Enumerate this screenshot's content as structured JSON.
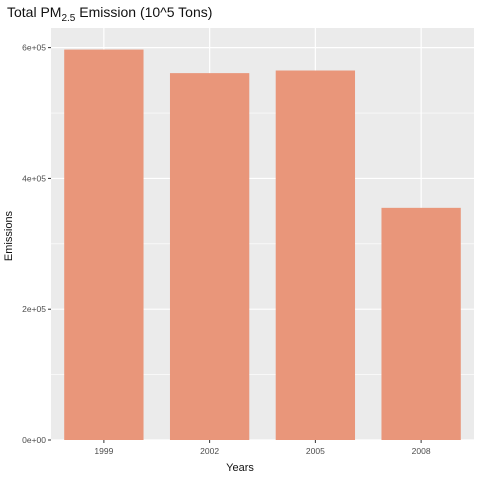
{
  "chart_data": {
    "type": "bar",
    "title_prefix": "Total PM",
    "title_sub": "2.5",
    "title_suffix": " Emission (10^5 Tons)",
    "xlabel": "Years",
    "ylabel": "Emissions",
    "categories": [
      "1999",
      "2002",
      "2005",
      "2008"
    ],
    "values": [
      597000,
      561000,
      565000,
      355000
    ],
    "ylim": [
      0,
      630000
    ],
    "yticks": [
      0,
      200000,
      400000,
      600000
    ],
    "ytick_labels": [
      "0e+00",
      "2e+05",
      "4e+05",
      "6e+05"
    ],
    "bar_color": "#E9967A",
    "panel_color": "#EBEBEB",
    "grid": true,
    "legend": "none"
  }
}
